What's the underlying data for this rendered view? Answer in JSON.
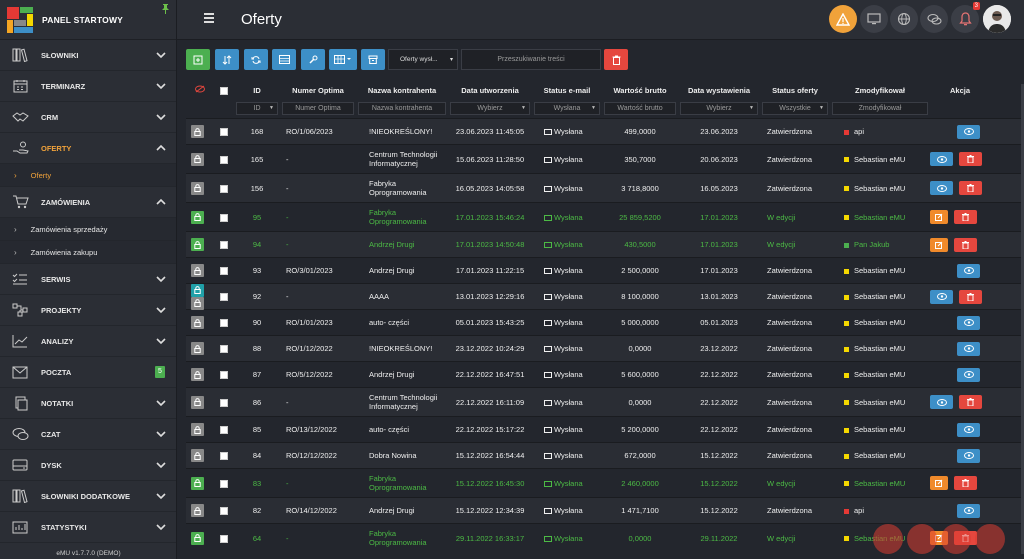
{
  "sidebar": {
    "title": "PANEL STARTOWY",
    "footer": "eMU v1.7.7.0 (DEMO)",
    "items": [
      {
        "label": "SŁOWNIKI",
        "icon": "books-icon"
      },
      {
        "label": "TERMINARZ",
        "icon": "calendar-icon"
      },
      {
        "label": "CRM",
        "icon": "handshake-icon"
      },
      {
        "label": "OFERTY",
        "icon": "hand-coins-icon",
        "active": true
      },
      {
        "label": "Oferty",
        "sub": true,
        "active": true
      },
      {
        "label": "ZAMÓWIENIA",
        "icon": "cart-icon"
      },
      {
        "label": "Zamówienia sprzedaży",
        "sub": true
      },
      {
        "label": "Zamówienia zakupu",
        "sub": true
      },
      {
        "label": "SERWIS",
        "icon": "list-check-icon"
      },
      {
        "label": "PROJEKTY",
        "icon": "project-icon"
      },
      {
        "label": "ANALIZY",
        "icon": "chart-line-icon"
      },
      {
        "label": "POCZTA",
        "icon": "mail-icon",
        "badge": "5"
      },
      {
        "label": "NOTATKI",
        "icon": "notes-icon"
      },
      {
        "label": "CZAT",
        "icon": "chat-icon"
      },
      {
        "label": "DYSK",
        "icon": "disk-icon"
      },
      {
        "label": "SŁOWNIKI DODATKOWE",
        "icon": "books-icon"
      },
      {
        "label": "STATYSTYKI",
        "icon": "stats-icon"
      }
    ]
  },
  "header": {
    "title": "Oferty",
    "notif_count": "3"
  },
  "toolbar": {
    "select_value": "Oferty wysł...",
    "search_placeholder": "Przeszukiwanie treści"
  },
  "columns": [
    "ID",
    "Numer Optima",
    "Nazwa kontrahenta",
    "Data utworzenia",
    "Status e-mail",
    "Wartość brutto",
    "Data wystawienia",
    "Status oferty",
    "Zmodyfikował",
    "Akcja"
  ],
  "filters": {
    "id": "ID",
    "optima": "Numer Optima",
    "kontrahent": "Nazwa kontrahenta",
    "data_utw": "Wybierz",
    "status_email": "Wysłana",
    "wartosc": "Wartość brutto",
    "data_wyst": "Wybierz",
    "status_oferty": "Wszystkie",
    "zmod": "Zmodyfikował"
  },
  "rows": [
    {
      "id": "168",
      "optima": "RO/1/06/2023",
      "kontrahent": "!NIEOKREŚLONY!",
      "data_utw": "23.06.2023 11:45:05",
      "email": "Wysłana",
      "wartosc": "499,0000",
      "data_wyst": "23.06.2023",
      "status": "Zatwierdzona",
      "zmod": "api",
      "sq": "#e53935",
      "green": false,
      "lock": "gray",
      "acts": [
        "eye"
      ]
    },
    {
      "id": "165",
      "optima": "-",
      "kontrahent": "Centrum Technologii Informatycznej",
      "data_utw": "15.06.2023 11:28:50",
      "email": "Wysłana",
      "wartosc": "350,7000",
      "data_wyst": "20.06.2023",
      "status": "Zatwierdzona",
      "zmod": "Sebastian eMU",
      "sq": "#f5d800",
      "green": false,
      "lock": "gray",
      "acts": [
        "eye",
        "del"
      ]
    },
    {
      "id": "156",
      "optima": "-",
      "kontrahent": "Fabryka Oprogramowania",
      "data_utw": "16.05.2023 14:05:58",
      "email": "Wysłana",
      "wartosc": "3 718,8000",
      "data_wyst": "16.05.2023",
      "status": "Zatwierdzona",
      "zmod": "Sebastian eMU",
      "sq": "#f5d800",
      "green": false,
      "lock": "gray",
      "acts": [
        "eye",
        "del"
      ]
    },
    {
      "id": "95",
      "optima": "-",
      "kontrahent": "Fabryka Oprogramowania",
      "data_utw": "17.01.2023 15:46:24",
      "email": "Wysłana",
      "wartosc": "25 859,5200",
      "data_wyst": "17.01.2023",
      "status": "W edycji",
      "zmod": "Sebastian eMU",
      "sq": "#f5d800",
      "green": true,
      "lock": "green",
      "acts": [
        "edit",
        "del"
      ]
    },
    {
      "id": "94",
      "optima": "-",
      "kontrahent": "Andrzej Drugi",
      "data_utw": "17.01.2023 14:50:48",
      "email": "Wysłana",
      "wartosc": "430,5000",
      "data_wyst": "17.01.2023",
      "status": "W edycji",
      "zmod": "Pan Jakub",
      "sq": "#4caf50",
      "green": true,
      "lock": "green",
      "acts": [
        "edit",
        "del"
      ]
    },
    {
      "id": "93",
      "optima": "RO/3/01/2023",
      "kontrahent": "Andrzej Drugi",
      "data_utw": "17.01.2023 11:22:15",
      "email": "Wysłana",
      "wartosc": "2 500,0000",
      "data_wyst": "17.01.2023",
      "status": "Zatwierdzona",
      "zmod": "Sebastian eMU",
      "sq": "#f5d800",
      "green": false,
      "lock": "gray",
      "acts": [
        "eye"
      ]
    },
    {
      "id": "92",
      "optima": "-",
      "kontrahent": "AAAA",
      "data_utw": "13.01.2023 12:29:16",
      "email": "Wysłana",
      "wartosc": "8 100,0000",
      "data_wyst": "13.01.2023",
      "status": "Zatwierdzona",
      "zmod": "Sebastian eMU",
      "sq": "#f5d800",
      "green": false,
      "lock": "teal",
      "acts": [
        "eye",
        "del"
      ]
    },
    {
      "id": "90",
      "optima": "RO/1/01/2023",
      "kontrahent": "auto- części",
      "data_utw": "05.01.2023 15:43:25",
      "email": "Wysłana",
      "wartosc": "5 000,0000",
      "data_wyst": "05.01.2023",
      "status": "Zatwierdzona",
      "zmod": "Sebastian eMU",
      "sq": "#f5d800",
      "green": false,
      "lock": "gray",
      "acts": [
        "eye"
      ]
    },
    {
      "id": "88",
      "optima": "RO/1/12/2022",
      "kontrahent": "!NIEOKREŚLONY!",
      "data_utw": "23.12.2022 10:24:29",
      "email": "Wysłana",
      "wartosc": "0,0000",
      "data_wyst": "23.12.2022",
      "status": "Zatwierdzona",
      "zmod": "Sebastian eMU",
      "sq": "#f5d800",
      "green": false,
      "lock": "gray",
      "acts": [
        "eye"
      ]
    },
    {
      "id": "87",
      "optima": "RO/5/12/2022",
      "kontrahent": "Andrzej Drugi",
      "data_utw": "22.12.2022 16:47:51",
      "email": "Wysłana",
      "wartosc": "5 600,0000",
      "data_wyst": "22.12.2022",
      "status": "Zatwierdzona",
      "zmod": "Sebastian eMU",
      "sq": "#f5d800",
      "green": false,
      "lock": "gray",
      "acts": [
        "eye"
      ]
    },
    {
      "id": "86",
      "optima": "-",
      "kontrahent": "Centrum Technologii Informatycznej",
      "data_utw": "22.12.2022 16:11:09",
      "email": "Wysłana",
      "wartosc": "0,0000",
      "data_wyst": "22.12.2022",
      "status": "Zatwierdzona",
      "zmod": "Sebastian eMU",
      "sq": "#f5d800",
      "green": false,
      "lock": "gray",
      "acts": [
        "eye",
        "del"
      ]
    },
    {
      "id": "85",
      "optima": "RO/13/12/2022",
      "kontrahent": "auto- części",
      "data_utw": "22.12.2022 15:17:22",
      "email": "Wysłana",
      "wartosc": "5 200,0000",
      "data_wyst": "22.12.2022",
      "status": "Zatwierdzona",
      "zmod": "Sebastian eMU",
      "sq": "#f5d800",
      "green": false,
      "lock": "gray",
      "acts": [
        "eye"
      ]
    },
    {
      "id": "84",
      "optima": "RO/12/12/2022",
      "kontrahent": "Dobra Nowina",
      "data_utw": "15.12.2022 16:54:44",
      "email": "Wysłana",
      "wartosc": "672,0000",
      "data_wyst": "15.12.2022",
      "status": "Zatwierdzona",
      "zmod": "Sebastian eMU",
      "sq": "#f5d800",
      "green": false,
      "lock": "gray",
      "acts": [
        "eye"
      ]
    },
    {
      "id": "83",
      "optima": "-",
      "kontrahent": "Fabryka Oprogramowania",
      "data_utw": "15.12.2022 16:45:30",
      "email": "Wysłana",
      "wartosc": "2 460,0000",
      "data_wyst": "15.12.2022",
      "status": "W edycji",
      "zmod": "Sebastian eMU",
      "sq": "#f5d800",
      "green": true,
      "lock": "green",
      "acts": [
        "edit",
        "del"
      ]
    },
    {
      "id": "82",
      "optima": "RO/14/12/2022",
      "kontrahent": "Andrzej Drugi",
      "data_utw": "15.12.2022 12:34:39",
      "email": "Wysłana",
      "wartosc": "1 471,7100",
      "data_wyst": "15.12.2022",
      "status": "Zatwierdzona",
      "zmod": "api",
      "sq": "#e53935",
      "green": false,
      "lock": "gray",
      "acts": [
        "eye"
      ]
    },
    {
      "id": "64",
      "optima": "-",
      "kontrahent": "Fabryka Oprogramowania",
      "data_utw": "29.11.2022 16:33:17",
      "email": "Wysłana",
      "wartosc": "0,0000",
      "data_wyst": "29.11.2022",
      "status": "W edycji",
      "zmod": "Sebastian eMU",
      "sq": "#f5d800",
      "green": true,
      "lock": "green",
      "acts": [
        "edit",
        "del"
      ]
    }
  ]
}
